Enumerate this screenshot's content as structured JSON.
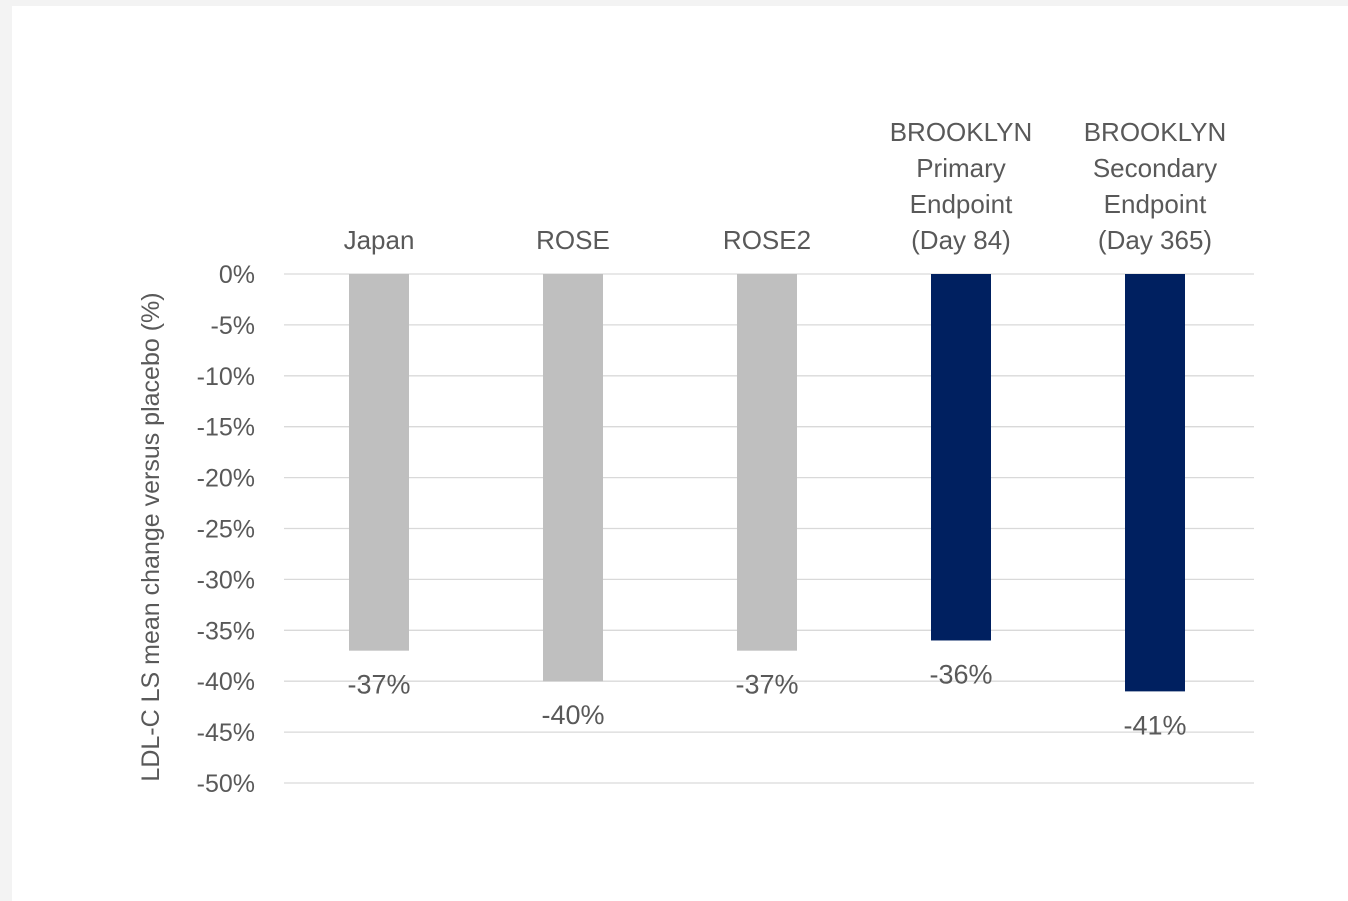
{
  "chart_data": {
    "type": "bar",
    "title": "",
    "xlabel": "",
    "ylabel": "LDL-C LS mean change versus placebo (%)",
    "categories": [
      [
        "Japan"
      ],
      [
        "ROSE"
      ],
      [
        "ROSE2"
      ],
      [
        "BROOKLYN",
        "Primary",
        "Endpoint",
        "(Day 84)"
      ],
      [
        "BROOKLYN",
        "Secondary",
        "Endpoint",
        "(Day 365)"
      ]
    ],
    "values": [
      -37,
      -40,
      -37,
      -36,
      -41
    ],
    "value_labels": [
      "-37%",
      "-40%",
      "-37%",
      "-36%",
      "-41%"
    ],
    "bar_colors": [
      "#bfbfbf",
      "#bfbfbf",
      "#bfbfbf",
      "#002060",
      "#002060"
    ],
    "ylim": [
      -50,
      0
    ],
    "yticks": [
      0,
      -5,
      -10,
      -15,
      -20,
      -25,
      -30,
      -35,
      -40,
      -45,
      -50
    ],
    "ytick_labels": [
      "0%",
      "-5%",
      "-10%",
      "-15%",
      "-20%",
      "-25%",
      "-30%",
      "-35%",
      "-40%",
      "-45%",
      "-50%"
    ],
    "grid": true,
    "legend": "none",
    "colors": {
      "gray": "#bfbfbf",
      "navy": "#002060",
      "gridline": "#d9d9d9",
      "text": "#595959"
    }
  }
}
